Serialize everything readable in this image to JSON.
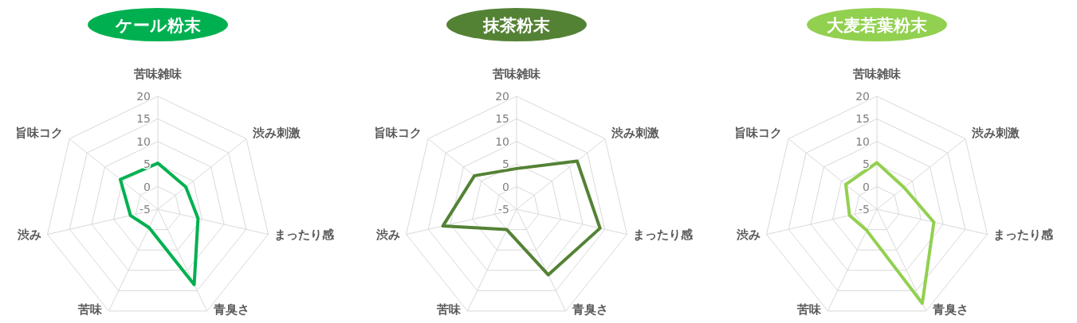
{
  "chart_data": [
    {
      "type": "radar",
      "title": "ケール粉末",
      "categories": [
        "苦味雑味",
        "渋み刺激",
        "まったり感",
        "青臭さ",
        "苦味",
        "渋み",
        "旨味コク"
      ],
      "ylim": [
        -5,
        20
      ],
      "yticks": [
        -5,
        0,
        5,
        10,
        15,
        20
      ],
      "series": [
        {
          "color": "#00b050",
          "values": [
            5.2,
            2.9,
            4.1,
            13.5,
            -0.5,
            1.2,
            5.6
          ]
        }
      ]
    },
    {
      "type": "radar",
      "title": "抹茶粉末",
      "categories": [
        "苦味雑味",
        "渋み刺激",
        "まったり感",
        "青臭さ",
        "苦味",
        "渋み",
        "旨味コク"
      ],
      "ylim": [
        -5,
        20
      ],
      "yticks": [
        -5,
        0,
        5,
        10,
        15,
        20
      ],
      "series": [
        {
          "color": "#548235",
          "values": [
            4,
            12.1,
            13.9,
            11.1,
            0,
            11.7,
            6.9
          ]
        }
      ]
    },
    {
      "type": "radar",
      "title": "大麦若葉粉末",
      "categories": [
        "苦味雑味",
        "渋み刺激",
        "まったり感",
        "青臭さ",
        "苦味",
        "渋み",
        "旨味コク"
      ],
      "ylim": [
        -5,
        20
      ],
      "yticks": [
        -5,
        0,
        5,
        10,
        15,
        20
      ],
      "series": [
        {
          "color": "#92d050",
          "values": [
            5.3,
            2.7,
            7.9,
            18.1,
            0.2,
            1.2,
            3.8
          ]
        }
      ]
    }
  ]
}
